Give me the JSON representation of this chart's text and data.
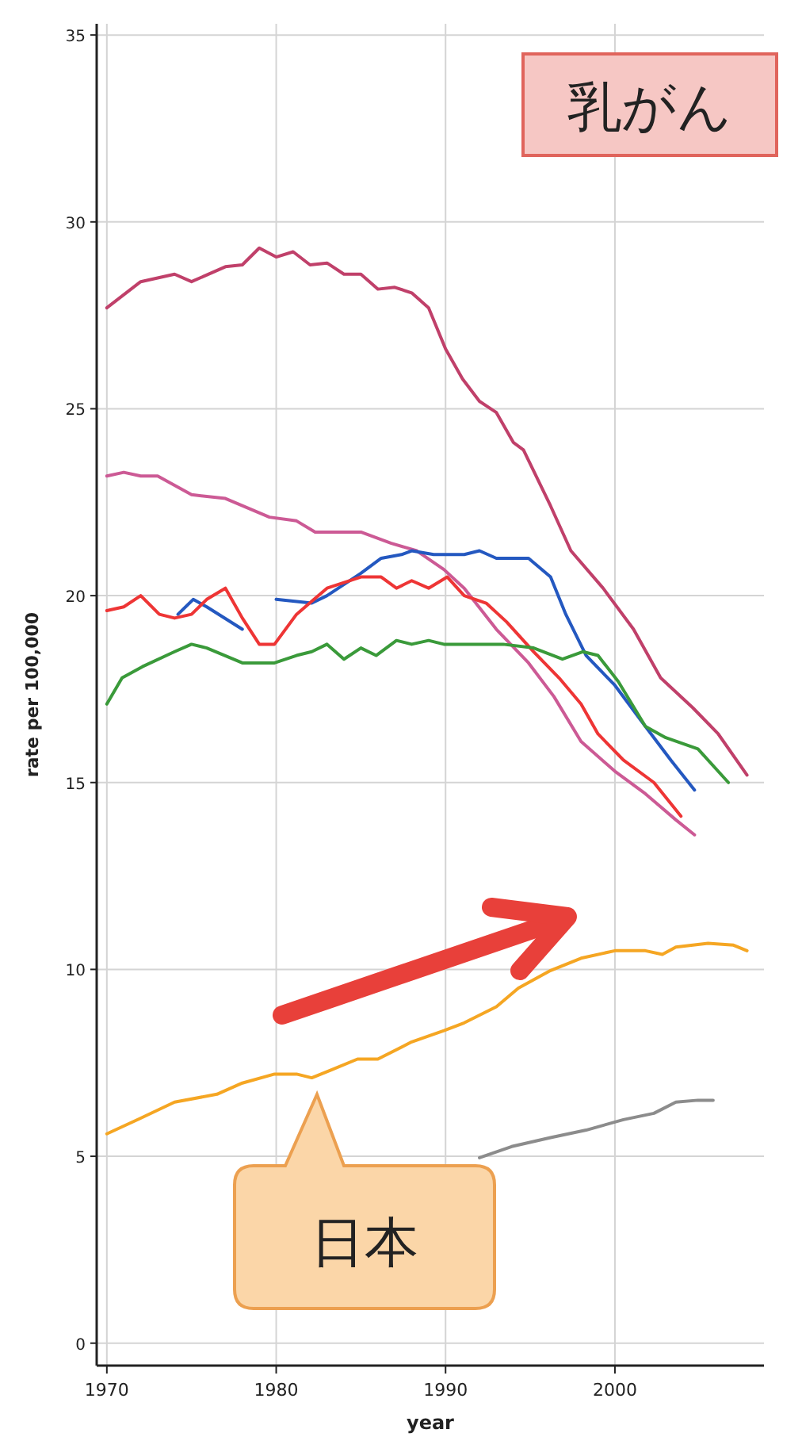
{
  "chart_data": {
    "type": "line",
    "title": "乳がん",
    "xlabel": "year",
    "ylabel": "rate per 100,000",
    "annotations": [
      "日本"
    ],
    "xlim": [
      1969.4,
      2008.8
    ],
    "ylim": [
      -0.6,
      35.3
    ],
    "xticks": [
      1970,
      1980,
      1990,
      2000
    ],
    "yticks": [
      0,
      5,
      10,
      15,
      20,
      25,
      30,
      35
    ],
    "grid": true,
    "marker": "none",
    "line_style": "solid",
    "series": [
      {
        "color": "#c0406a",
        "x": [
          1970,
          1972,
          1974,
          1975,
          1977,
          1978,
          1979,
          1980,
          1981,
          1982,
          1983,
          1984,
          1985,
          1986,
          1987,
          1988,
          1989,
          1990,
          1991,
          1992,
          1993,
          1994,
          1994.6,
          1996.2,
          1997.4,
          1999.3,
          2001.1,
          2002.7,
          2004.6,
          2006.1,
          2007.8
        ],
        "values": [
          27.7,
          28.4,
          28.6,
          28.4,
          28.8,
          28.85,
          29.3,
          29.06,
          29.2,
          28.85,
          28.9,
          28.6,
          28.6,
          28.2,
          28.25,
          28.1,
          27.7,
          26.6,
          25.8,
          25.2,
          24.9,
          24.1,
          23.9,
          22.4,
          21.2,
          20.2,
          19.1,
          17.8,
          17.0,
          16.3,
          15.2
        ]
      },
      {
        "color": "#cc5a95",
        "x": [
          1970,
          1971,
          1972,
          1973,
          1975,
          1977,
          1979.6,
          1981.2,
          1982.3,
          1985,
          1986.8,
          1988.3,
          1989.9,
          1991.1,
          1993,
          1994.9,
          1996.4,
          1998,
          2000,
          2001.8,
          2003.6,
          2004.7
        ],
        "values": [
          23.2,
          23.3,
          23.2,
          23.2,
          22.7,
          22.6,
          22.1,
          22.0,
          21.7,
          21.7,
          21.4,
          21.2,
          20.7,
          20.2,
          19.1,
          18.2,
          17.3,
          16.1,
          15.3,
          14.7,
          14.0,
          13.6
        ]
      },
      {
        "color": "#2458c0",
        "x": [
          1974.2,
          1975.1,
          1975.9,
          1978,
          null,
          1980,
          1982.1,
          1983,
          1985,
          1986.2,
          1987.4,
          1988,
          1989.3,
          1991.1,
          1992,
          1993,
          1994.9,
          1996.2,
          1997.1,
          1998.3,
          2000,
          2001.8,
          2003.3,
          2004.7
        ],
        "values": [
          19.5,
          19.9,
          19.7,
          19.1,
          null,
          19.9,
          19.8,
          20.0,
          20.6,
          21.0,
          21.1,
          21.2,
          21.1,
          21.1,
          21.2,
          21.0,
          21.0,
          20.5,
          19.5,
          18.4,
          17.6,
          16.5,
          15.6,
          14.8
        ]
      },
      {
        "color": "#ee3535",
        "x": [
          1970,
          1971,
          1972,
          1973.1,
          1974,
          1975,
          1975.9,
          1977,
          1978,
          1979,
          1979.9,
          1981.2,
          1983,
          1985,
          1986.2,
          1987.1,
          1988,
          1989,
          1990.1,
          1991.1,
          1992.4,
          1993.6,
          1995.2,
          1996.7,
          1998,
          1999,
          2000.5,
          2002.3,
          2003.9
        ],
        "values": [
          19.6,
          19.7,
          20.0,
          19.5,
          19.4,
          19.5,
          19.9,
          20.2,
          19.4,
          18.7,
          18.7,
          19.5,
          20.2,
          20.5,
          20.5,
          20.2,
          20.4,
          20.2,
          20.5,
          20.0,
          19.8,
          19.3,
          18.5,
          17.8,
          17.1,
          16.3,
          15.6,
          15.0,
          14.1
        ]
      },
      {
        "color": "#3a9a3a",
        "x": [
          1970,
          1970.9,
          1972.1,
          1974,
          1975,
          1975.9,
          1978,
          1979.9,
          1981.2,
          1982.1,
          1983,
          1984,
          1985,
          1985.9,
          1987.1,
          1988,
          1989,
          1989.9,
          1992,
          1993.4,
          1995.2,
          1996.9,
          1998.1,
          1999,
          2000.2,
          2001.8,
          2003,
          2004.9,
          2006.7
        ],
        "values": [
          17.1,
          17.8,
          18.1,
          18.5,
          18.7,
          18.6,
          18.2,
          18.2,
          18.4,
          18.5,
          18.7,
          18.3,
          18.6,
          18.4,
          18.8,
          18.7,
          18.8,
          18.7,
          18.7,
          18.7,
          18.6,
          18.3,
          18.5,
          18.4,
          17.7,
          16.5,
          16.2,
          15.9,
          15.0
        ]
      },
      {
        "color": "#f5a623",
        "x": [
          1970,
          1971.9,
          1974,
          1976.5,
          1978,
          1979.9,
          1981.2,
          1982.1,
          1983.2,
          1984.8,
          1986,
          1988,
          1989.9,
          1991.1,
          1993,
          1994.3,
          1996.2,
          1998,
          2000,
          2001.8,
          2002.8,
          2003.6,
          2005.5,
          2007,
          2007.8
        ],
        "values": [
          5.6,
          6.0,
          6.45,
          6.66,
          6.96,
          7.2,
          7.2,
          7.1,
          7.3,
          7.6,
          7.6,
          8.06,
          8.36,
          8.57,
          9.0,
          9.5,
          9.97,
          10.3,
          10.5,
          10.5,
          10.4,
          10.6,
          10.7,
          10.65,
          10.5
        ]
      },
      {
        "color": "#8c8c8c",
        "x": [
          1992,
          1993.9,
          1996.2,
          1998.3,
          2000.5,
          2002.3,
          2003.6,
          2004.9,
          2005.8
        ],
        "values": [
          4.96,
          5.26,
          5.5,
          5.7,
          5.98,
          6.15,
          6.45,
          6.5,
          6.5
        ]
      }
    ]
  }
}
